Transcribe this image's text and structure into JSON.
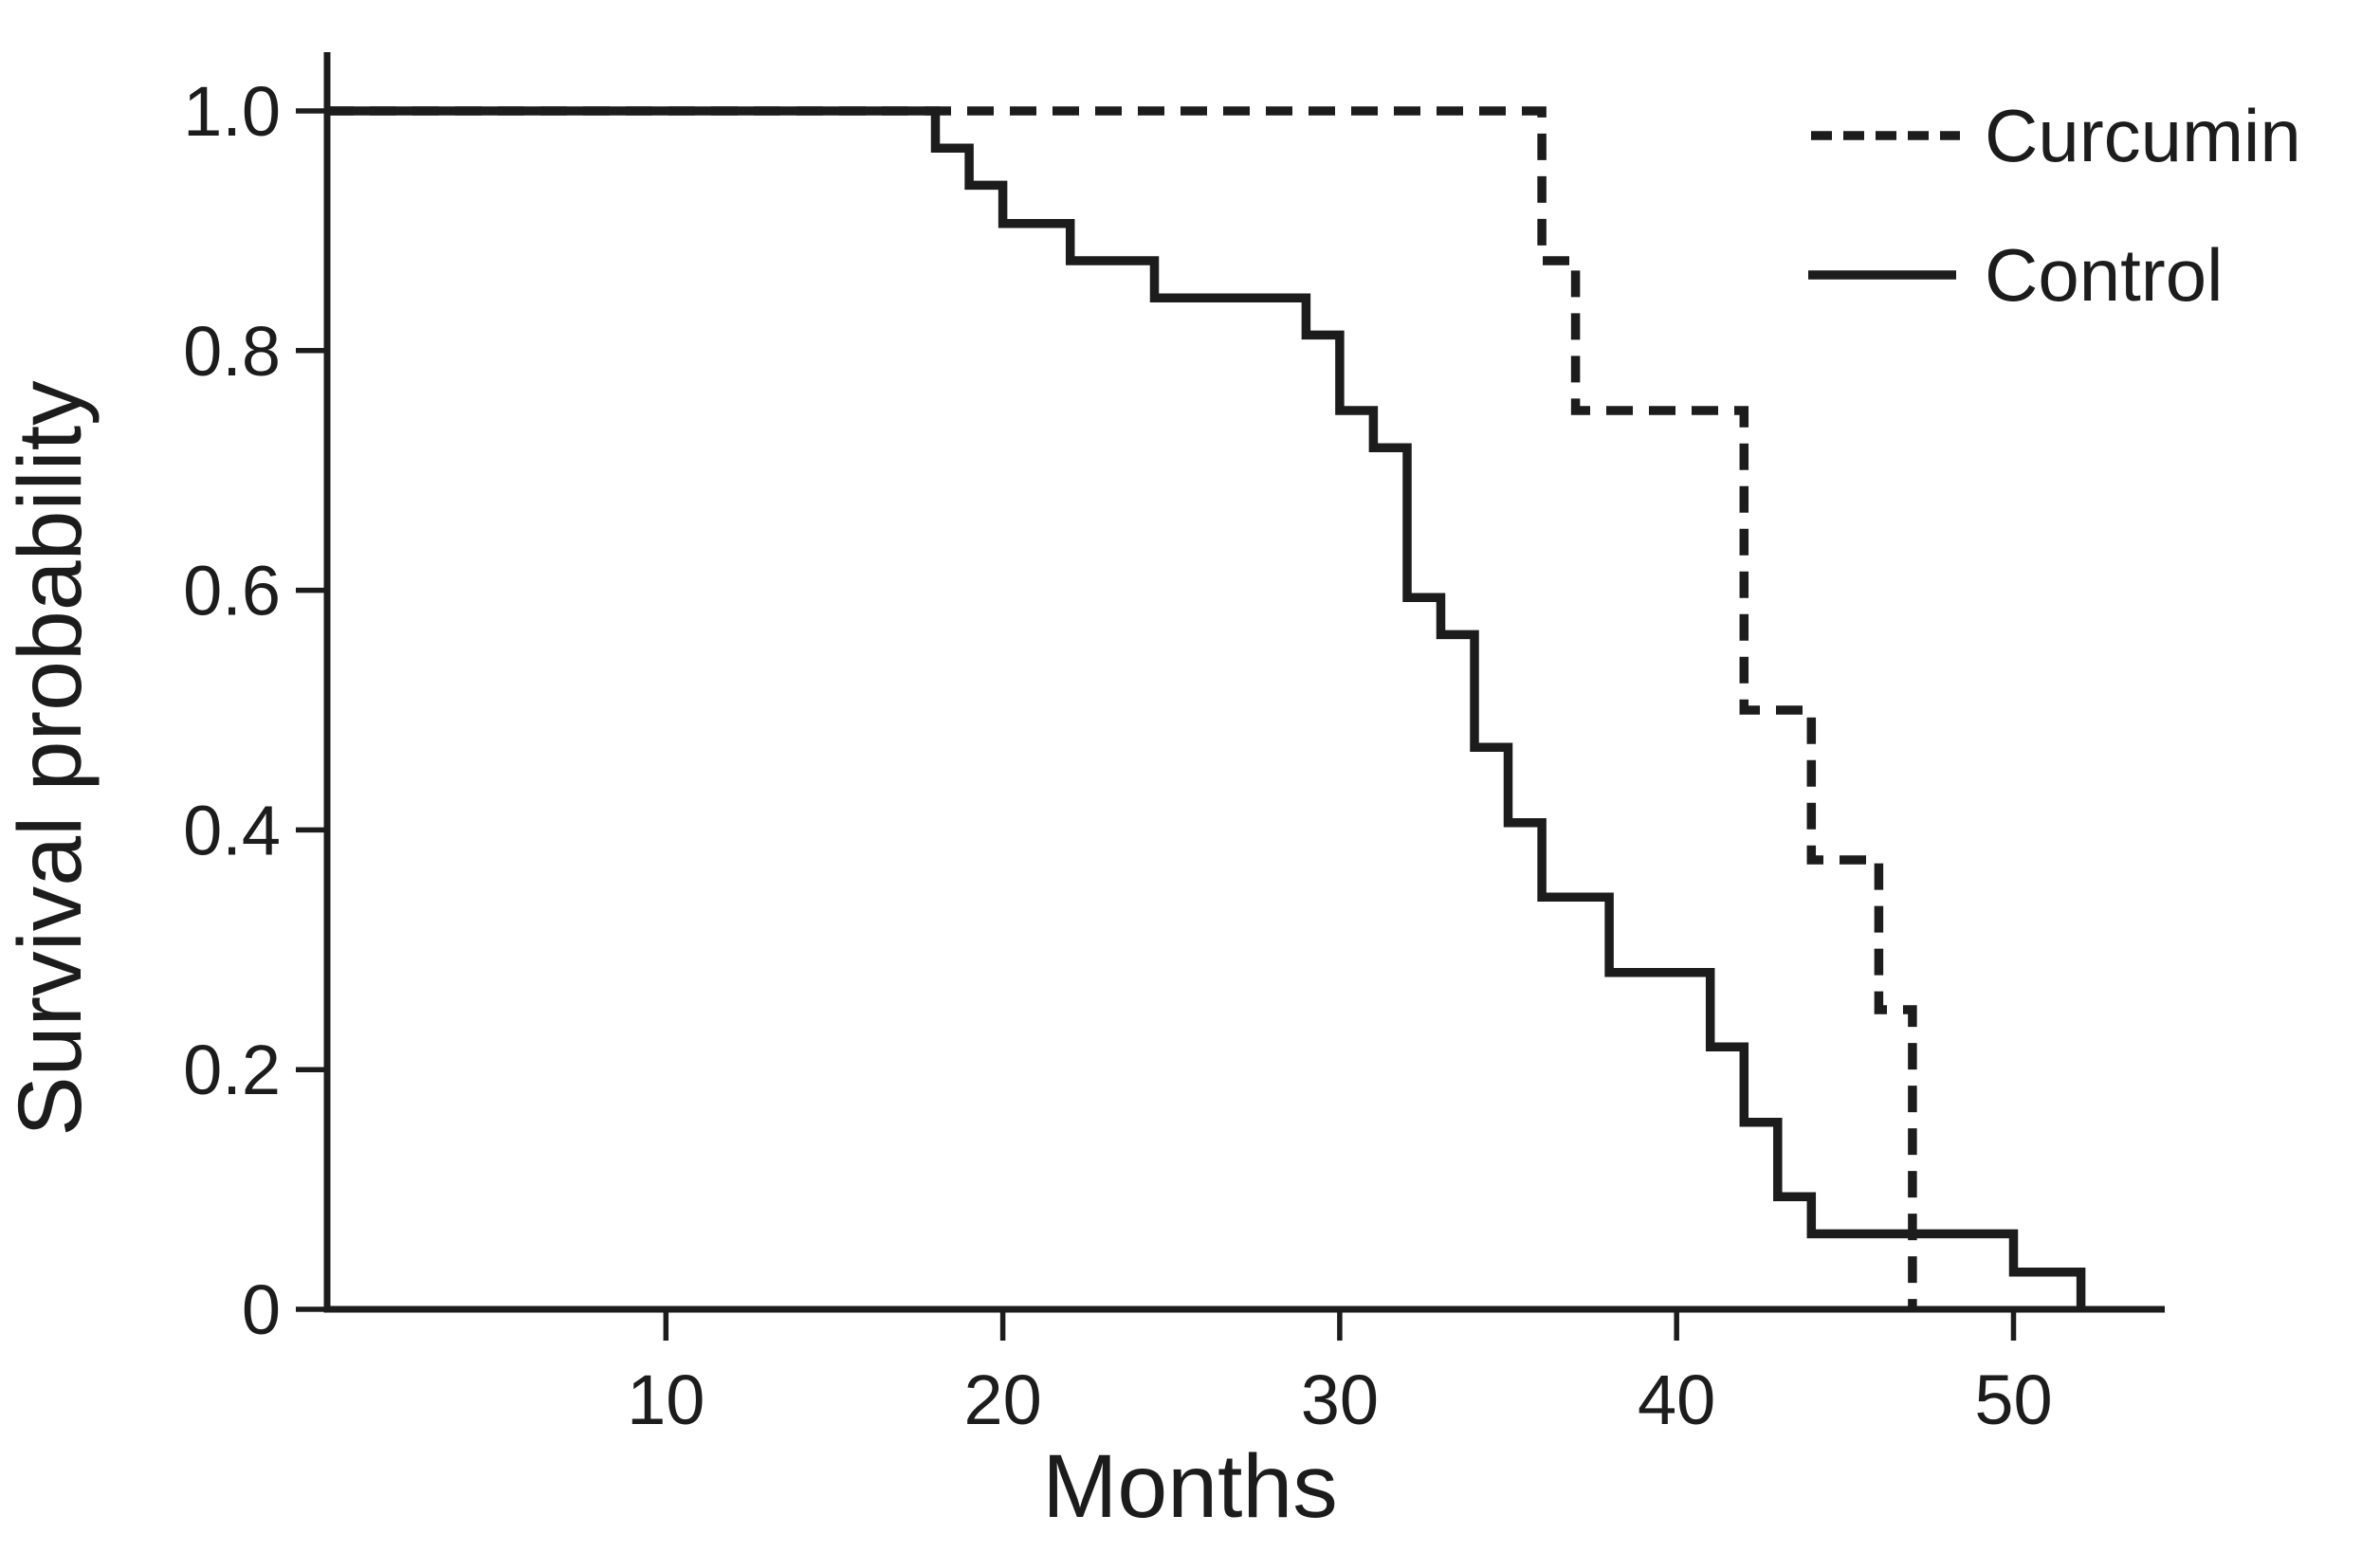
{
  "figure": {
    "background": "#ffffff",
    "curve_color": "#1c1c1c"
  },
  "chart_data": {
    "type": "line",
    "chart_kind": "kaplan_meier_step",
    "title": "",
    "xlabel": "Months",
    "ylabel": "Survival probability",
    "xlim": [
      0,
      54.5
    ],
    "ylim": [
      0,
      1.05
    ],
    "grid": false,
    "legend_position": "top-right",
    "xticks": [
      {
        "value": 10,
        "label": "10"
      },
      {
        "value": 20,
        "label": "20"
      },
      {
        "value": 30,
        "label": "30"
      },
      {
        "value": 40,
        "label": "40"
      },
      {
        "value": 50,
        "label": "50"
      }
    ],
    "yticks": [
      {
        "value": 1.0,
        "label": "1.0"
      },
      {
        "value": 0.8,
        "label": "0.8"
      },
      {
        "value": 0.6,
        "label": "0.6"
      },
      {
        "value": 0.4,
        "label": "0.4"
      },
      {
        "value": 0.2,
        "label": "0.2"
      },
      {
        "value": 0.0,
        "label": "0"
      }
    ],
    "series": [
      {
        "name": "Curcumin",
        "line_style": "dashed",
        "start_survival": 1.0,
        "steps_time_survival": [
          [
            36,
            0.875
          ],
          [
            37,
            0.75
          ],
          [
            42,
            0.5
          ],
          [
            44,
            0.375
          ],
          [
            46,
            0.25
          ],
          [
            47,
            0
          ]
        ]
      },
      {
        "name": "Control",
        "line_style": "solid",
        "start_survival": 1.0,
        "steps_time_survival": [
          [
            18,
            0.969
          ],
          [
            19,
            0.938
          ],
          [
            20,
            0.906
          ],
          [
            22,
            0.875
          ],
          [
            24.5,
            0.844
          ],
          [
            29,
            0.813
          ],
          [
            30,
            0.75
          ],
          [
            31,
            0.719
          ],
          [
            32,
            0.594
          ],
          [
            33,
            0.563
          ],
          [
            34,
            0.469
          ],
          [
            35,
            0.406
          ],
          [
            36,
            0.344
          ],
          [
            38,
            0.281
          ],
          [
            41,
            0.219
          ],
          [
            42,
            0.156
          ],
          [
            43,
            0.094
          ],
          [
            44,
            0.063
          ],
          [
            50,
            0.031
          ],
          [
            52,
            0
          ]
        ]
      }
    ]
  }
}
